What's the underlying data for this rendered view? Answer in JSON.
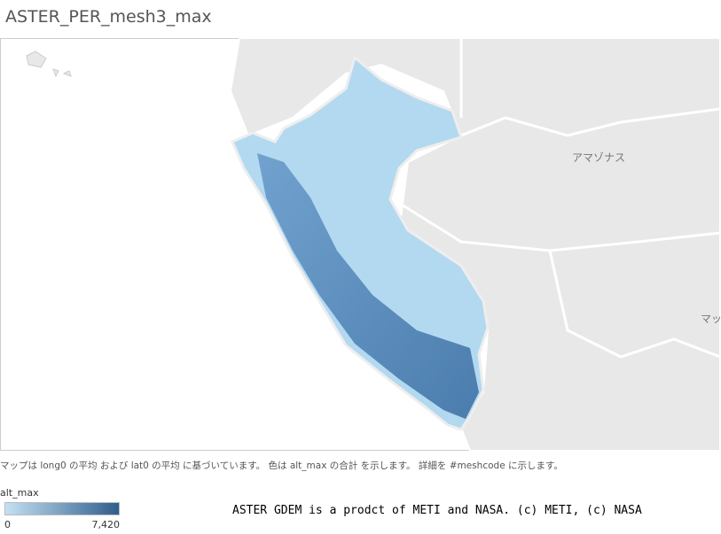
{
  "header": {
    "title": "ASTER_PER_mesh3_max"
  },
  "map": {
    "labels": [
      "アマゾナス",
      "マッ"
    ]
  },
  "caption": "マップは long0 の平均 および lat0 の平均 に基づいています。 色は alt_max の合計 を示します。 詳細を #meshcode に示します。",
  "legend": {
    "title": "alt_max",
    "min": 0,
    "max": {
      "value": 7420,
      "label": "7,420"
    },
    "colors": [
      "#c4e0f3",
      "#2f5e8c"
    ]
  },
  "credit": "ASTER GDEM is a prodct of METI and NASA. (c) METI, (c) NASA"
}
